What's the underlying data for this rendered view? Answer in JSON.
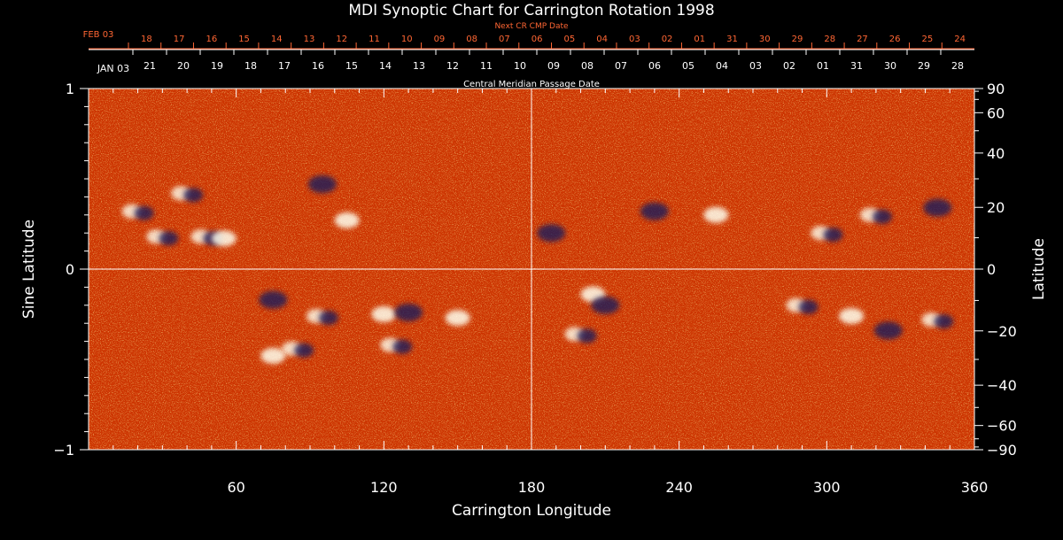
{
  "chart_data": {
    "type": "heatmap",
    "title": "MDI Synoptic Chart for Carrington Rotation 1998",
    "xlabel": "Carrington Longitude",
    "ylabel_left": "Sine Latitude",
    "ylabel_right": "Latitude",
    "top_axis_label": "Central Meridian Passage Date",
    "next_axis_label": "Next CR CMP Date",
    "xlim": [
      0,
      360
    ],
    "ylim": [
      -1,
      1
    ],
    "x_ticks": [
      "60",
      "120",
      "180",
      "240",
      "300",
      "360"
    ],
    "left_ticks": [
      "1",
      "0",
      "−1"
    ],
    "right_ticks": [
      "90",
      "60",
      "40",
      "20",
      "0",
      "−20",
      "−40",
      "−60",
      "−90"
    ],
    "right_tick_degrees": [
      90,
      60,
      40,
      20,
      0,
      -20,
      -40,
      -60,
      -90
    ],
    "cmp_month_label": "JAN 03",
    "cmp_dates": [
      "21",
      "20",
      "19",
      "18",
      "17",
      "16",
      "15",
      "14",
      "13",
      "12",
      "11",
      "10",
      "09",
      "08",
      "07",
      "06",
      "05",
      "04",
      "03",
      "02",
      "01",
      "31",
      "30",
      "29",
      "28"
    ],
    "next_month_label": "FEB 03",
    "next_cmp_dates": [
      "18",
      "17",
      "16",
      "15",
      "14",
      "13",
      "12",
      "11",
      "10",
      "09",
      "08",
      "07",
      "06",
      "05",
      "04",
      "03",
      "02",
      "01",
      "31",
      "30",
      "29",
      "28",
      "27",
      "26",
      "25",
      "24"
    ],
    "colors": {
      "background": "#cc3300",
      "positive": "#ffffee",
      "negative": "#1a1a5a",
      "axis": "#ffffff",
      "next_axis": "#ff6633"
    },
    "grid": "crosshair at longitude 180 and sine latitude 0",
    "features": [
      {
        "lon": 20,
        "sinlat": 0.32,
        "polarity": "mixed"
      },
      {
        "lon": 30,
        "sinlat": 0.18,
        "polarity": "mixed"
      },
      {
        "lon": 48,
        "sinlat": 0.18,
        "polarity": "mixed"
      },
      {
        "lon": 55,
        "sinlat": 0.17,
        "polarity": "positive"
      },
      {
        "lon": 105,
        "sinlat": 0.27,
        "polarity": "positive"
      },
      {
        "lon": 40,
        "sinlat": 0.42,
        "polarity": "mixed"
      },
      {
        "lon": 95,
        "sinlat": 0.47,
        "polarity": "negative"
      },
      {
        "lon": 75,
        "sinlat": -0.17,
        "polarity": "negative"
      },
      {
        "lon": 95,
        "sinlat": -0.26,
        "polarity": "mixed"
      },
      {
        "lon": 85,
        "sinlat": -0.44,
        "polarity": "mixed"
      },
      {
        "lon": 75,
        "sinlat": -0.48,
        "polarity": "positive"
      },
      {
        "lon": 120,
        "sinlat": -0.25,
        "polarity": "positive"
      },
      {
        "lon": 130,
        "sinlat": -0.24,
        "polarity": "negative"
      },
      {
        "lon": 125,
        "sinlat": -0.42,
        "polarity": "mixed"
      },
      {
        "lon": 150,
        "sinlat": -0.27,
        "polarity": "positive"
      },
      {
        "lon": 188,
        "sinlat": 0.2,
        "polarity": "negative"
      },
      {
        "lon": 205,
        "sinlat": -0.14,
        "polarity": "positive"
      },
      {
        "lon": 210,
        "sinlat": -0.2,
        "polarity": "negative"
      },
      {
        "lon": 200,
        "sinlat": -0.36,
        "polarity": "mixed"
      },
      {
        "lon": 230,
        "sinlat": 0.32,
        "polarity": "negative"
      },
      {
        "lon": 255,
        "sinlat": 0.3,
        "polarity": "positive"
      },
      {
        "lon": 300,
        "sinlat": 0.2,
        "polarity": "mixed"
      },
      {
        "lon": 320,
        "sinlat": 0.3,
        "polarity": "mixed"
      },
      {
        "lon": 345,
        "sinlat": 0.34,
        "polarity": "negative"
      },
      {
        "lon": 290,
        "sinlat": -0.2,
        "polarity": "mixed"
      },
      {
        "lon": 310,
        "sinlat": -0.26,
        "polarity": "positive"
      },
      {
        "lon": 325,
        "sinlat": -0.34,
        "polarity": "negative"
      },
      {
        "lon": 345,
        "sinlat": -0.28,
        "polarity": "mixed"
      }
    ]
  }
}
